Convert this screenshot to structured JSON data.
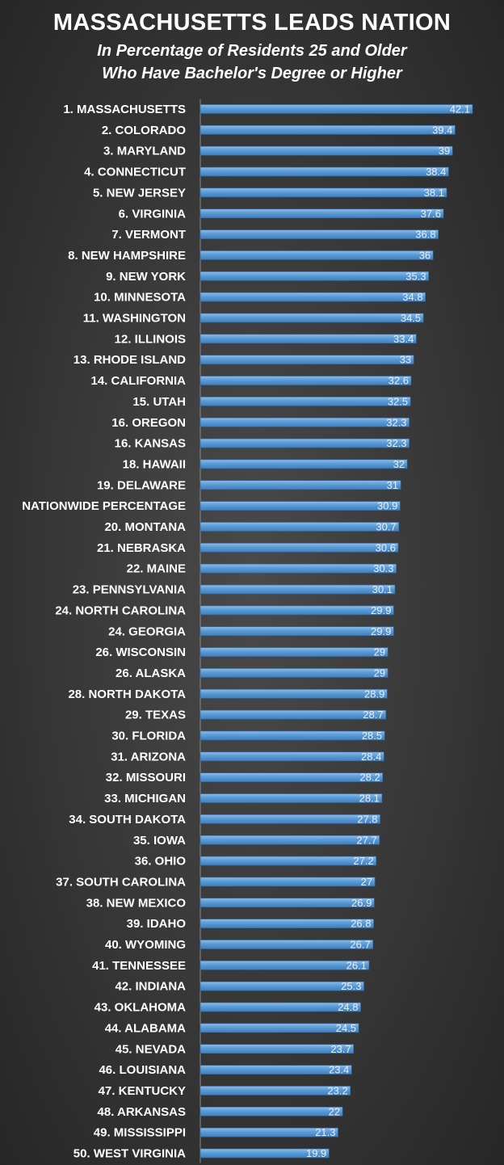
{
  "chart_data": {
    "type": "bar",
    "orientation": "horizontal",
    "title": "MASSACHUSETTS LEADS NATION",
    "subtitle": [
      "In Percentage of Residents 25 and Older",
      "Who Have Bachelor's Degree or Higher"
    ],
    "xlabel": "",
    "ylabel": "",
    "xlim": [
      0,
      45
    ],
    "grid": false,
    "bar_color": "#5b9bd5",
    "categories": [
      "1. MASSACHUSETTS",
      "2. COLORADO",
      "3. MARYLAND",
      "4. CONNECTICUT",
      "5. NEW JERSEY",
      "6. VIRGINIA",
      "7. VERMONT",
      "8. NEW HAMPSHIRE",
      "9. NEW YORK",
      "10. MINNESOTA",
      "11. WASHINGTON",
      "12. ILLINOIS",
      "13. RHODE ISLAND",
      "14. CALIFORNIA",
      "15. UTAH",
      "16. OREGON",
      "16. KANSAS",
      "18. HAWAII",
      "19. DELAWARE",
      "NATIONWIDE PERCENTAGE",
      "20. MONTANA",
      "21. NEBRASKA",
      "22. MAINE",
      "23. PENNSYLVANIA",
      "24. NORTH CAROLINA",
      "24. GEORGIA",
      "26. WISCONSIN",
      "26. ALASKA",
      "28. NORTH DAKOTA",
      "29. TEXAS",
      "30. FLORIDA",
      "31. ARIZONA",
      "32. MISSOURI",
      "33. MICHIGAN",
      "34. SOUTH DAKOTA",
      "35. IOWA",
      "36. OHIO",
      "37. SOUTH CAROLINA",
      "38. NEW MEXICO",
      "39. IDAHO",
      "40. WYOMING",
      "41. TENNESSEE",
      "42. INDIANA",
      "43. OKLAHOMA",
      "44. ALABAMA",
      "45. NEVADA",
      "46. LOUISIANA",
      "47. KENTUCKY",
      "48. ARKANSAS",
      "49. MISSISSIPPI",
      "50. WEST VIRGINIA"
    ],
    "values": [
      42.1,
      39.4,
      39,
      38.4,
      38.1,
      37.6,
      36.8,
      36,
      35.3,
      34.8,
      34.5,
      33.4,
      33,
      32.6,
      32.5,
      32.3,
      32.3,
      32,
      31,
      30.9,
      30.7,
      30.6,
      30.3,
      30.1,
      29.9,
      29.9,
      29,
      29,
      28.9,
      28.7,
      28.5,
      28.4,
      28.2,
      28.1,
      27.8,
      27.7,
      27.2,
      27,
      26.9,
      26.8,
      26.7,
      26.1,
      25.3,
      24.8,
      24.5,
      23.7,
      23.4,
      23.2,
      22,
      21.3,
      19.9
    ]
  }
}
